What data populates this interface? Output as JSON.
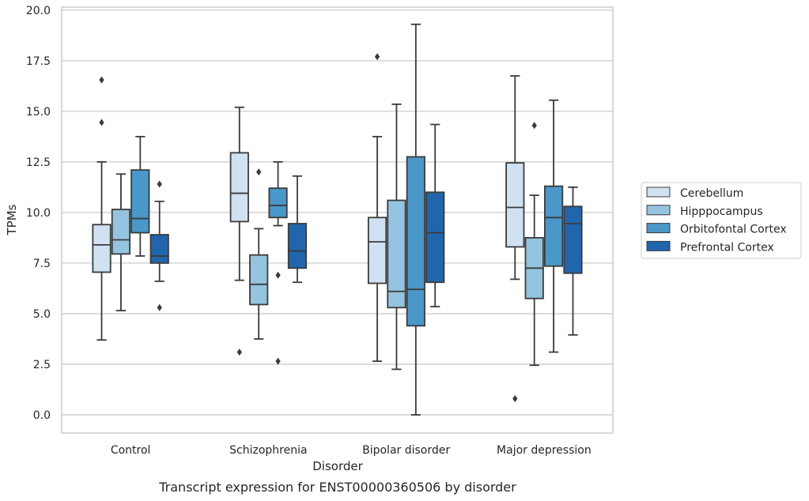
{
  "chart_data": {
    "type": "box",
    "title": "",
    "caption": "Transcript expression for ENST00000360506 by disorder",
    "xlabel": "Disorder",
    "ylabel": "TPMs",
    "ylim": [
      -0.9,
      20.15
    ],
    "yticks": [
      0.0,
      2.5,
      5.0,
      7.5,
      10.0,
      12.5,
      15.0,
      17.5,
      20.0
    ],
    "ytick_labels": [
      "0.0",
      "2.5",
      "5.0",
      "7.5",
      "10.0",
      "12.5",
      "15.0",
      "17.5",
      "20.0"
    ],
    "grid": true,
    "legend_position": "right",
    "categories": [
      "Control",
      "Schizophrenia",
      "Bipolar disorder",
      "Major depression"
    ],
    "series": [
      {
        "name": "Cerebellum",
        "color": "#d0e1f2",
        "boxes": [
          {
            "whislo": 3.7,
            "q1": 7.05,
            "med": 8.4,
            "q3": 9.4,
            "whishi": 12.5,
            "fliers": [
              14.45,
              16.55
            ]
          },
          {
            "whislo": 6.65,
            "q1": 9.55,
            "med": 10.95,
            "q3": 12.95,
            "whishi": 15.2,
            "fliers": [
              3.1
            ]
          },
          {
            "whislo": 2.65,
            "q1": 6.5,
            "med": 8.55,
            "q3": 9.75,
            "whishi": 13.75,
            "fliers": [
              17.7
            ]
          },
          {
            "whislo": 6.7,
            "q1": 8.3,
            "med": 10.25,
            "q3": 12.45,
            "whishi": 16.75,
            "fliers": [
              0.8
            ]
          }
        ]
      },
      {
        "name": "Hipppocampus",
        "color": "#94c4df",
        "boxes": [
          {
            "whislo": 5.15,
            "q1": 7.95,
            "med": 8.65,
            "q3": 10.15,
            "whishi": 11.9,
            "fliers": []
          },
          {
            "whislo": 3.75,
            "q1": 5.45,
            "med": 6.45,
            "q3": 7.9,
            "whishi": 9.2,
            "fliers": [
              12.0
            ]
          },
          {
            "whislo": 2.25,
            "q1": 5.3,
            "med": 6.1,
            "q3": 10.6,
            "whishi": 15.35,
            "fliers": []
          },
          {
            "whislo": 2.45,
            "q1": 5.75,
            "med": 7.25,
            "q3": 8.75,
            "whishi": 10.85,
            "fliers": [
              14.3
            ]
          }
        ]
      },
      {
        "name": "Orbitofontal Cortex",
        "color": "#4a98c9",
        "boxes": [
          {
            "whislo": 7.85,
            "q1": 9.0,
            "med": 9.7,
            "q3": 12.1,
            "whishi": 13.75,
            "fliers": []
          },
          {
            "whislo": 9.35,
            "q1": 9.75,
            "med": 10.35,
            "q3": 11.2,
            "whishi": 12.5,
            "fliers": [
              6.9,
              2.65
            ]
          },
          {
            "whislo": 0.0,
            "q1": 4.4,
            "med": 6.2,
            "q3": 12.75,
            "whishi": 19.3,
            "fliers": []
          },
          {
            "whislo": 3.1,
            "q1": 7.35,
            "med": 9.75,
            "q3": 11.3,
            "whishi": 15.55,
            "fliers": []
          }
        ]
      },
      {
        "name": "Prefrontal Cortex",
        "color": "#2166ac",
        "boxes": [
          {
            "whislo": 6.6,
            "q1": 7.5,
            "med": 7.85,
            "q3": 8.9,
            "whishi": 10.55,
            "fliers": [
              11.4,
              5.3
            ]
          },
          {
            "whislo": 6.55,
            "q1": 7.25,
            "med": 8.1,
            "q3": 9.45,
            "whishi": 11.8,
            "fliers": []
          },
          {
            "whislo": 5.35,
            "q1": 6.55,
            "med": 9.0,
            "q3": 11.0,
            "whishi": 14.35,
            "fliers": []
          },
          {
            "whislo": 3.95,
            "q1": 7.0,
            "med": 9.45,
            "q3": 10.3,
            "whishi": 11.25,
            "fliers": []
          }
        ]
      }
    ]
  }
}
